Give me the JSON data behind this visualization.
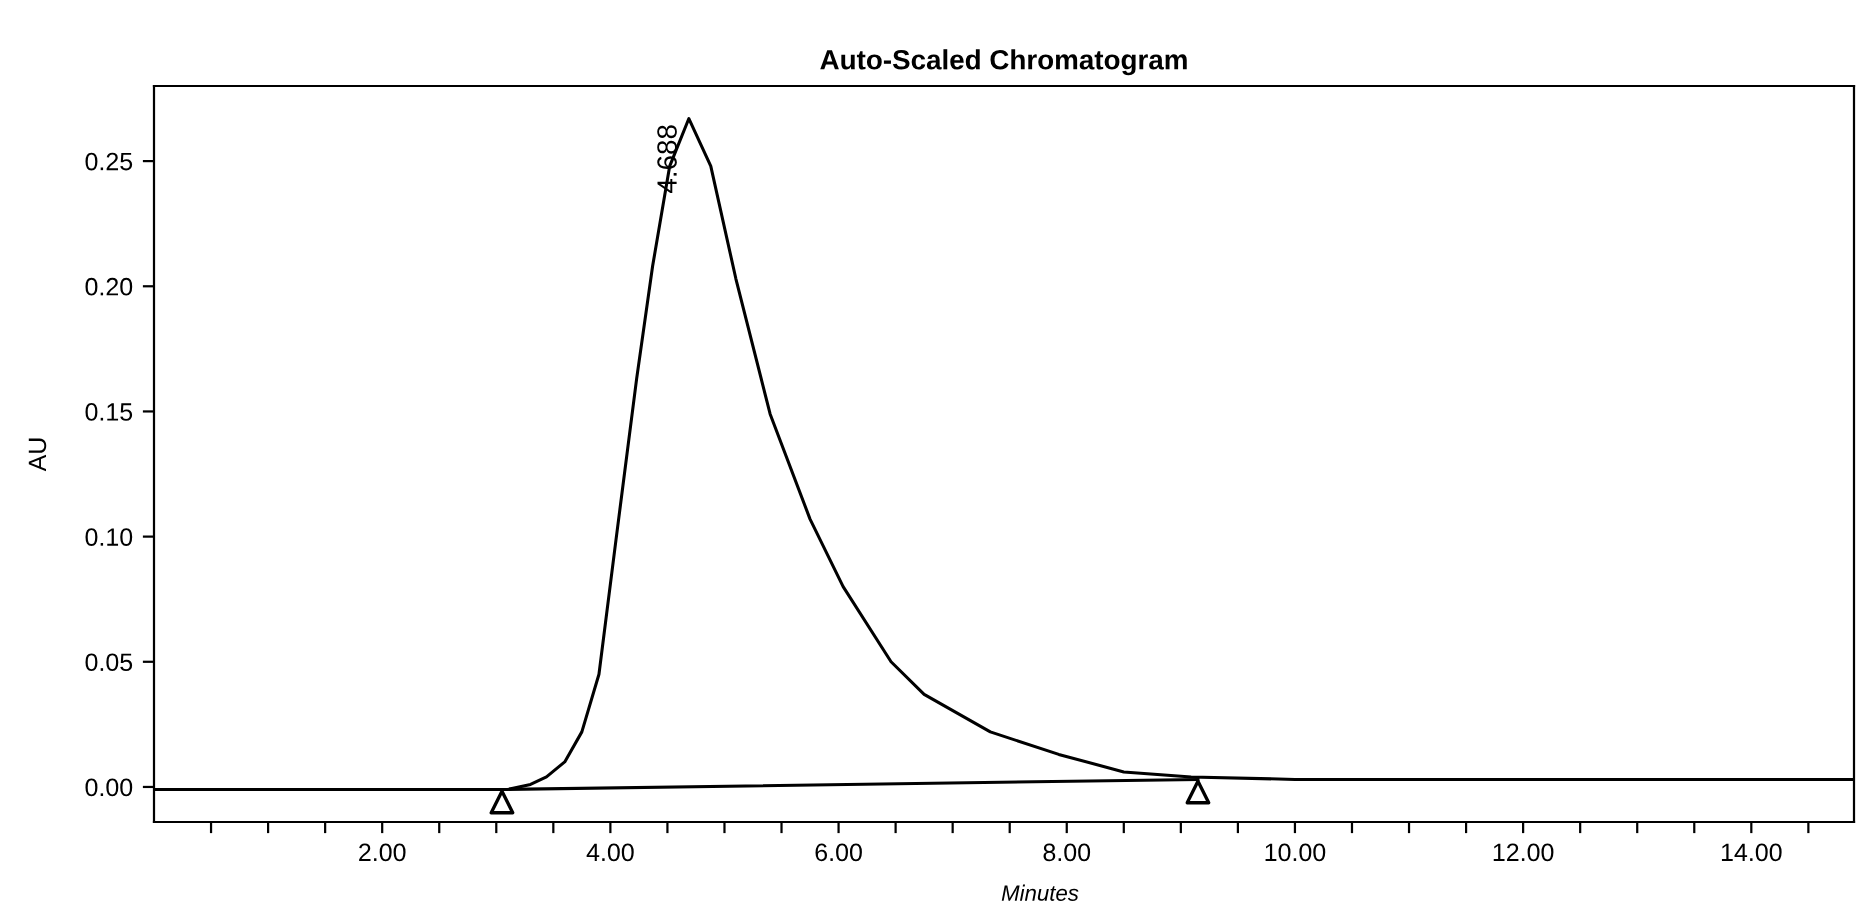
{
  "chart_data": {
    "type": "line",
    "title": "Auto-Scaled Chromatogram",
    "xlabel": "Minutes",
    "ylabel": "AU",
    "xlim": [
      0,
      14.9
    ],
    "ylim": [
      -0.014,
      0.28
    ],
    "xticks": [
      {
        "value": 0.5,
        "label": null
      },
      {
        "value": 1.0,
        "label": null
      },
      {
        "value": 1.5,
        "label": null
      },
      {
        "value": 2,
        "label": "2.00"
      },
      {
        "value": 2.5,
        "label": null
      },
      {
        "value": 3.0,
        "label": null
      },
      {
        "value": 3.5,
        "label": null
      },
      {
        "value": 4,
        "label": "4.00"
      },
      {
        "value": 4.5,
        "label": null
      },
      {
        "value": 5.0,
        "label": null
      },
      {
        "value": 5.5,
        "label": null
      },
      {
        "value": 6,
        "label": "6.00"
      },
      {
        "value": 6.5,
        "label": null
      },
      {
        "value": 7.0,
        "label": null
      },
      {
        "value": 7.5,
        "label": null
      },
      {
        "value": 8,
        "label": "8.00"
      },
      {
        "value": 8.5,
        "label": null
      },
      {
        "value": 9.0,
        "label": null
      },
      {
        "value": 9.5,
        "label": null
      },
      {
        "value": 10,
        "label": "10.00"
      },
      {
        "value": 10.5,
        "label": null
      },
      {
        "value": 11.0,
        "label": null
      },
      {
        "value": 11.5,
        "label": null
      },
      {
        "value": 12,
        "label": "12.00"
      },
      {
        "value": 12.5,
        "label": null
      },
      {
        "value": 13.0,
        "label": null
      },
      {
        "value": 13.5,
        "label": null
      },
      {
        "value": 14,
        "label": "14.00"
      },
      {
        "value": 14.5,
        "label": null
      }
    ],
    "yticks": [
      {
        "value": 0,
        "label": "0.00"
      },
      {
        "value": 0.05,
        "label": "0.05"
      },
      {
        "value": 0.1,
        "label": "0.10"
      },
      {
        "value": 0.15,
        "label": "0.15"
      },
      {
        "value": 0.2,
        "label": "0.20"
      },
      {
        "value": 0.25,
        "label": "0.25"
      }
    ],
    "grid": false,
    "series": [
      {
        "color": "#000000",
        "x": [
          0,
          2.8,
          3.1,
          3.3,
          3.44,
          3.6,
          3.75,
          3.9,
          4.05,
          4.23,
          4.37,
          4.52,
          4.688,
          4.88,
          5.1,
          5.4,
          5.75,
          6.04,
          6.46,
          6.75,
          7.33,
          7.93,
          8.5,
          9.09,
          10.0,
          12.0,
          14.9
        ],
        "values": [
          -0.001,
          -0.001,
          -0.001,
          0.001,
          0.004,
          0.01,
          0.022,
          0.045,
          0.099,
          0.163,
          0.208,
          0.248,
          0.267,
          0.248,
          0.203,
          0.149,
          0.107,
          0.08,
          0.05,
          0.037,
          0.022,
          0.013,
          0.006,
          0.004,
          0.003,
          0.003,
          0.003
        ]
      },
      {
        "type": "line",
        "color": "#000000",
        "x": [
          3.05,
          9.15
        ],
        "values": [
          -0.001,
          0.003
        ]
      },
      {
        "type": "scatter",
        "color": "#000000",
        "marker": "triangle",
        "x": [
          3.05,
          9.15
        ],
        "values": [
          -0.006,
          -0.002
        ]
      }
    ],
    "annotations": [
      {
        "text": "4.688",
        "x": 4.688,
        "y": 0.267
      }
    ]
  }
}
